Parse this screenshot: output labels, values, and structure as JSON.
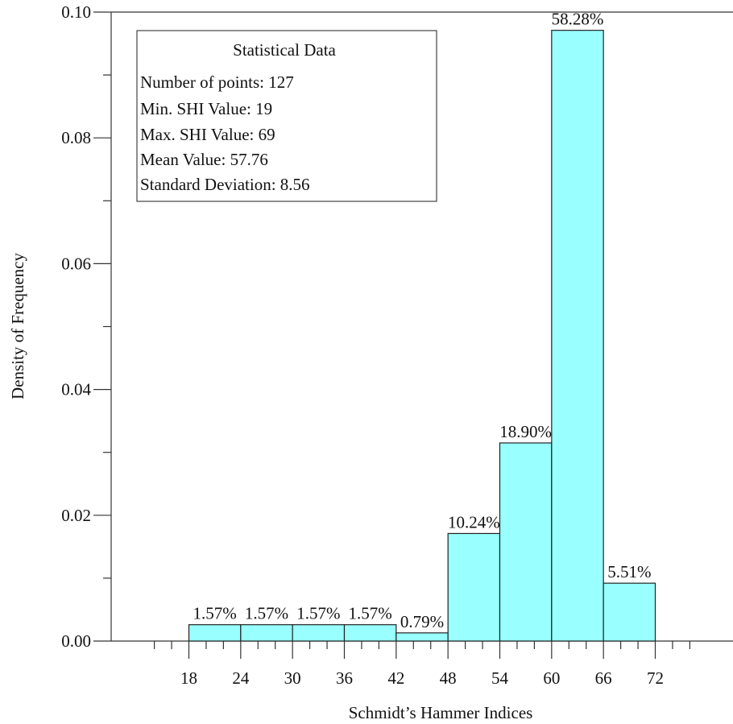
{
  "chart_data": {
    "type": "bar",
    "bins": [
      {
        "start": 18,
        "end": 24,
        "density": 0.0026,
        "label": "1.57%"
      },
      {
        "start": 24,
        "end": 30,
        "density": 0.0026,
        "label": "1.57%"
      },
      {
        "start": 30,
        "end": 36,
        "density": 0.0026,
        "label": "1.57%"
      },
      {
        "start": 36,
        "end": 42,
        "density": 0.0026,
        "label": "1.57%"
      },
      {
        "start": 42,
        "end": 48,
        "density": 0.0013,
        "label": "0.79%"
      },
      {
        "start": 48,
        "end": 54,
        "density": 0.0171,
        "label": "10.24%"
      },
      {
        "start": 54,
        "end": 60,
        "density": 0.0315,
        "label": "18.90%"
      },
      {
        "start": 60,
        "end": 66,
        "density": 0.0971,
        "label": "58.28%"
      },
      {
        "start": 66,
        "end": 72,
        "density": 0.0092,
        "label": "5.51%"
      }
    ],
    "xlabel": "Schmidt’s Hammer Indices",
    "ylabel": "Density of Frequency",
    "xlim": [
      9,
      81
    ],
    "ylim": [
      0,
      0.1
    ],
    "x_ticks": [
      "18",
      "24",
      "30",
      "36",
      "42",
      "48",
      "54",
      "60",
      "66",
      "72"
    ],
    "y_ticks": [
      "0.00",
      "0.02",
      "0.04",
      "0.06",
      "0.08",
      "0.10"
    ],
    "bar_color": "#99ffff",
    "grid": false,
    "stats_box": {
      "title": "Statistical Data",
      "lines": [
        "Number of points: 127",
        "Min. SHI Value: 19",
        "Max. SHI Value: 69",
        "Mean Value: 57.76",
        "Standard Deviation: 8.56"
      ]
    }
  }
}
